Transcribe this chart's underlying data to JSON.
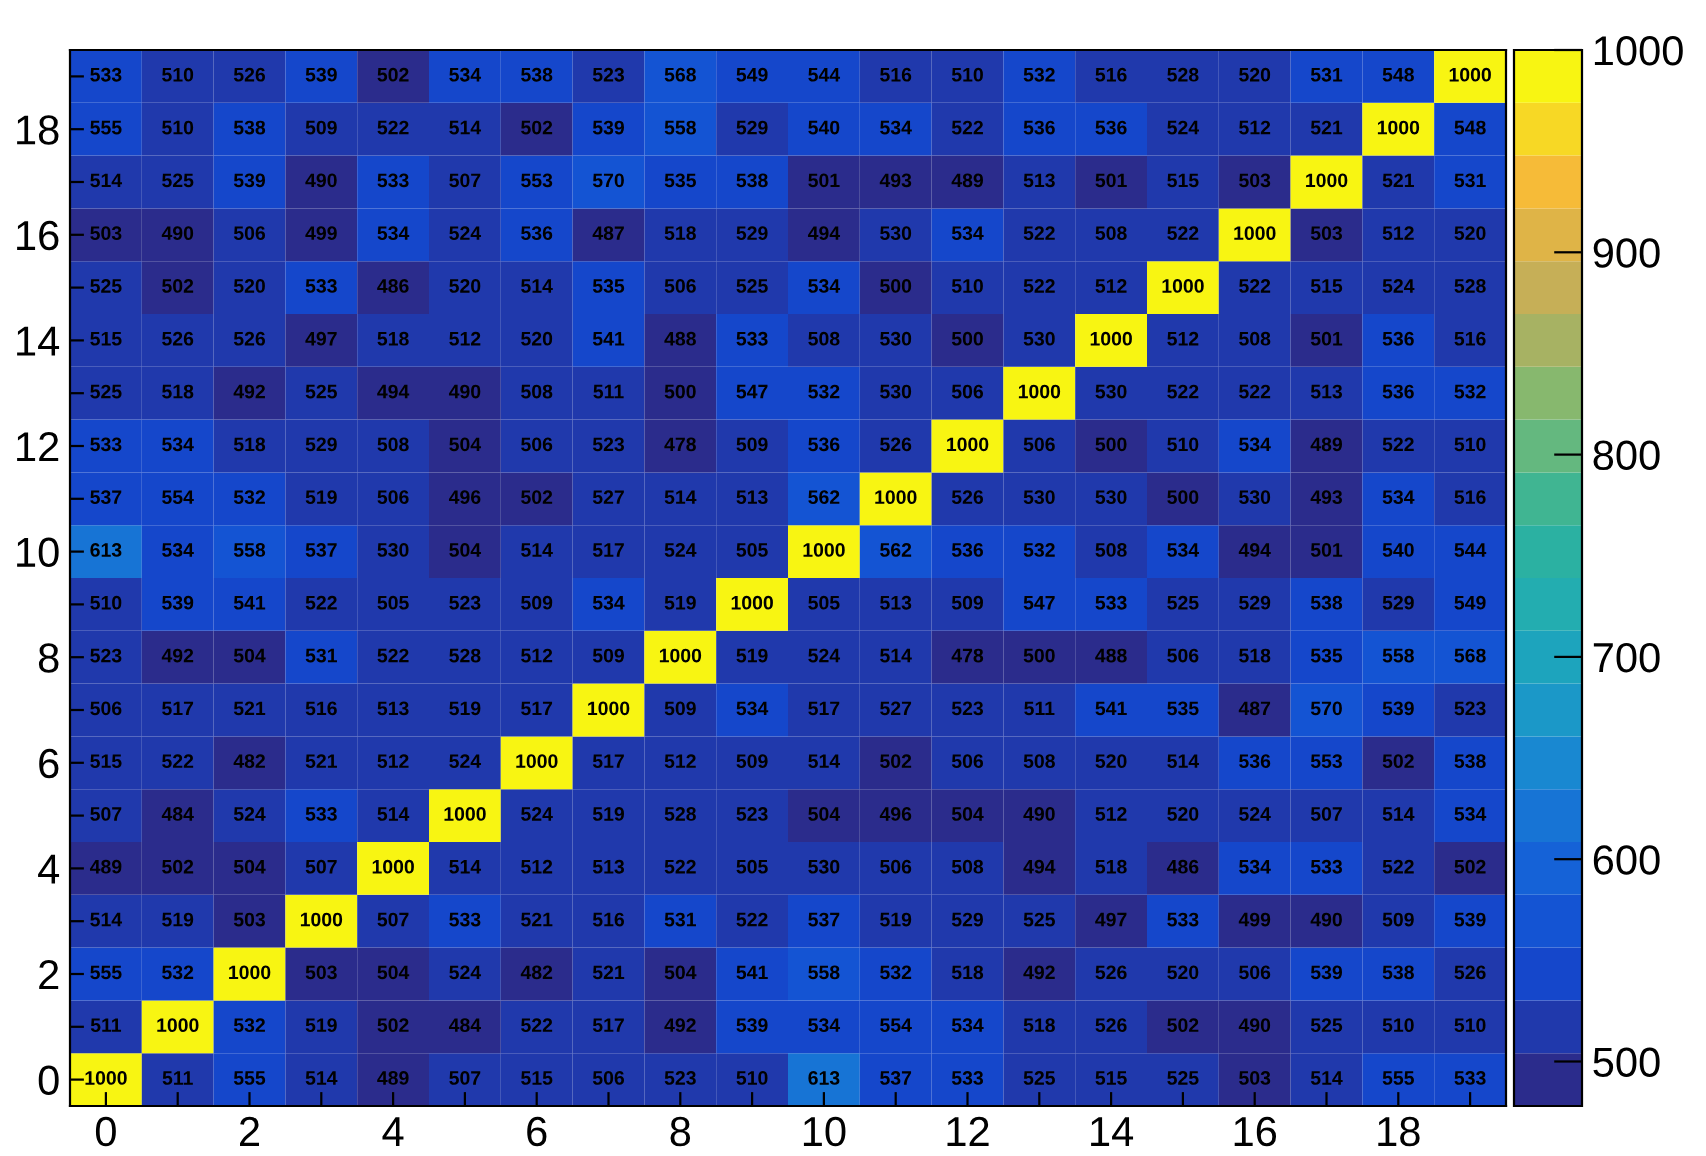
{
  "chart_data": {
    "type": "heatmap",
    "categories": [
      "0",
      null,
      "2",
      null,
      "4",
      null,
      "6",
      null,
      "8",
      null,
      "10",
      null,
      "12",
      null,
      "14",
      null,
      "16",
      null,
      "18",
      null
    ],
    "y_categories": [
      null,
      "18",
      null,
      "16",
      null,
      "14",
      null,
      "12",
      null,
      "10",
      null,
      "8",
      null,
      "6",
      null,
      "4",
      null,
      "2",
      null,
      "0"
    ],
    "cells": [
      [
        533,
        510,
        526,
        539,
        502,
        534,
        538,
        523,
        568,
        549,
        544,
        516,
        510,
        532,
        516,
        528,
        520,
        531,
        548,
        1000
      ],
      [
        555,
        510,
        538,
        509,
        522,
        514,
        502,
        539,
        558,
        529,
        540,
        534,
        522,
        536,
        536,
        524,
        512,
        521,
        1000,
        548
      ],
      [
        514,
        525,
        539,
        490,
        533,
        507,
        553,
        570,
        535,
        538,
        501,
        493,
        489,
        513,
        501,
        515,
        503,
        1000,
        521,
        531
      ],
      [
        503,
        490,
        506,
        499,
        534,
        524,
        536,
        487,
        518,
        529,
        494,
        530,
        534,
        522,
        508,
        522,
        1000,
        503,
        512,
        520
      ],
      [
        525,
        502,
        520,
        533,
        486,
        520,
        514,
        535,
        506,
        525,
        534,
        500,
        510,
        522,
        512,
        1000,
        522,
        515,
        524,
        528
      ],
      [
        515,
        526,
        526,
        497,
        518,
        512,
        520,
        541,
        488,
        533,
        508,
        530,
        500,
        530,
        1000,
        512,
        508,
        501,
        536,
        516
      ],
      [
        525,
        518,
        492,
        525,
        494,
        490,
        508,
        511,
        500,
        547,
        532,
        530,
        506,
        1000,
        530,
        522,
        522,
        513,
        536,
        532
      ],
      [
        533,
        534,
        518,
        529,
        508,
        504,
        506,
        523,
        478,
        509,
        536,
        526,
        1000,
        506,
        500,
        510,
        534,
        489,
        522,
        510
      ],
      [
        537,
        554,
        532,
        519,
        506,
        496,
        502,
        527,
        514,
        513,
        562,
        1000,
        526,
        530,
        530,
        500,
        530,
        493,
        534,
        516
      ],
      [
        613,
        534,
        558,
        537,
        530,
        504,
        514,
        517,
        524,
        505,
        1000,
        562,
        536,
        532,
        508,
        534,
        494,
        501,
        540,
        544
      ],
      [
        510,
        539,
        541,
        522,
        505,
        523,
        509,
        534,
        519,
        1000,
        505,
        513,
        509,
        547,
        533,
        525,
        529,
        538,
        529,
        549
      ],
      [
        523,
        492,
        504,
        531,
        522,
        528,
        512,
        509,
        1000,
        519,
        524,
        514,
        478,
        500,
        488,
        506,
        518,
        535,
        558,
        568
      ],
      [
        506,
        517,
        521,
        516,
        513,
        519,
        517,
        1000,
        509,
        534,
        517,
        527,
        523,
        511,
        541,
        535,
        487,
        570,
        539,
        523
      ],
      [
        515,
        522,
        482,
        521,
        512,
        524,
        1000,
        517,
        512,
        509,
        514,
        502,
        506,
        508,
        520,
        514,
        536,
        553,
        502,
        538
      ],
      [
        507,
        484,
        524,
        533,
        514,
        1000,
        524,
        519,
        528,
        523,
        504,
        496,
        504,
        490,
        512,
        520,
        524,
        507,
        514,
        534
      ],
      [
        489,
        502,
        504,
        507,
        1000,
        514,
        512,
        513,
        522,
        505,
        530,
        506,
        508,
        494,
        518,
        486,
        534,
        533,
        522,
        502
      ],
      [
        514,
        519,
        503,
        1000,
        507,
        533,
        521,
        516,
        531,
        522,
        537,
        519,
        529,
        525,
        497,
        533,
        499,
        490,
        509,
        539
      ],
      [
        555,
        532,
        1000,
        503,
        504,
        524,
        482,
        521,
        504,
        541,
        558,
        532,
        518,
        492,
        526,
        520,
        506,
        539,
        538,
        526
      ],
      [
        511,
        1000,
        532,
        519,
        502,
        484,
        522,
        517,
        492,
        539,
        534,
        554,
        534,
        518,
        526,
        502,
        490,
        525,
        510,
        510
      ],
      [
        1000,
        511,
        555,
        514,
        489,
        507,
        515,
        506,
        523,
        510,
        613,
        537,
        533,
        525,
        515,
        525,
        503,
        514,
        555,
        533
      ]
    ],
    "data_labels": true,
    "clim": [
      478,
      1000
    ],
    "cticks": [
      500,
      600,
      700,
      800,
      900,
      1000
    ]
  }
}
